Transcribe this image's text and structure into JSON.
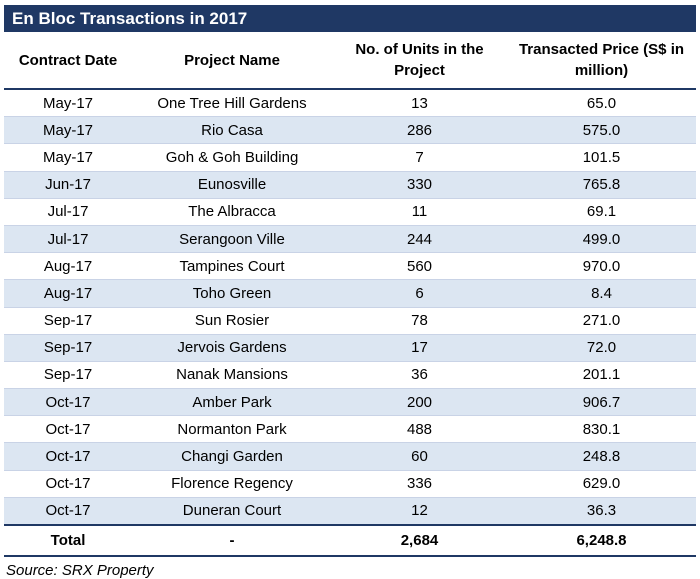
{
  "title": "En Bloc Transactions in 2017",
  "headers": [
    "Contract Date",
    "Project Name",
    "No. of Units in the Project",
    "Transacted Price (S$ in million)"
  ],
  "rows": [
    {
      "date": "May-17",
      "project": "One Tree Hill Gardens",
      "units": "13",
      "price": "65.0"
    },
    {
      "date": "May-17",
      "project": "Rio Casa",
      "units": "286",
      "price": "575.0"
    },
    {
      "date": "May-17",
      "project": "Goh & Goh Building",
      "units": "7",
      "price": "101.5"
    },
    {
      "date": "Jun-17",
      "project": "Eunosville",
      "units": "330",
      "price": "765.8"
    },
    {
      "date": "Jul-17",
      "project": "The Albracca",
      "units": "11",
      "price": "69.1"
    },
    {
      "date": "Jul-17",
      "project": "Serangoon Ville",
      "units": "244",
      "price": "499.0"
    },
    {
      "date": "Aug-17",
      "project": "Tampines Court",
      "units": "560",
      "price": "970.0"
    },
    {
      "date": "Aug-17",
      "project": "Toho Green",
      "units": "6",
      "price": "8.4"
    },
    {
      "date": "Sep-17",
      "project": "Sun Rosier",
      "units": "78",
      "price": "271.0"
    },
    {
      "date": "Sep-17",
      "project": "Jervois Gardens",
      "units": "17",
      "price": "72.0"
    },
    {
      "date": "Sep-17",
      "project": "Nanak Mansions",
      "units": "36",
      "price": "201.1"
    },
    {
      "date": "Oct-17",
      "project": "Amber Park",
      "units": "200",
      "price": "906.7"
    },
    {
      "date": "Oct-17",
      "project": "Normanton Park",
      "units": "488",
      "price": "830.1"
    },
    {
      "date": "Oct-17",
      "project": "Changi Garden",
      "units": "60",
      "price": "248.8"
    },
    {
      "date": "Oct-17",
      "project": "Florence Regency",
      "units": "336",
      "price": "629.0"
    },
    {
      "date": "Oct-17",
      "project": "Duneran Court",
      "units": "12",
      "price": "36.3"
    }
  ],
  "total": {
    "label": "Total",
    "project": "-",
    "units": "2,684",
    "price": "6,248.8"
  },
  "source": "Source: SRX Property",
  "colors": {
    "title_bg": "#1f3864",
    "alt_row": "#dce6f2"
  }
}
